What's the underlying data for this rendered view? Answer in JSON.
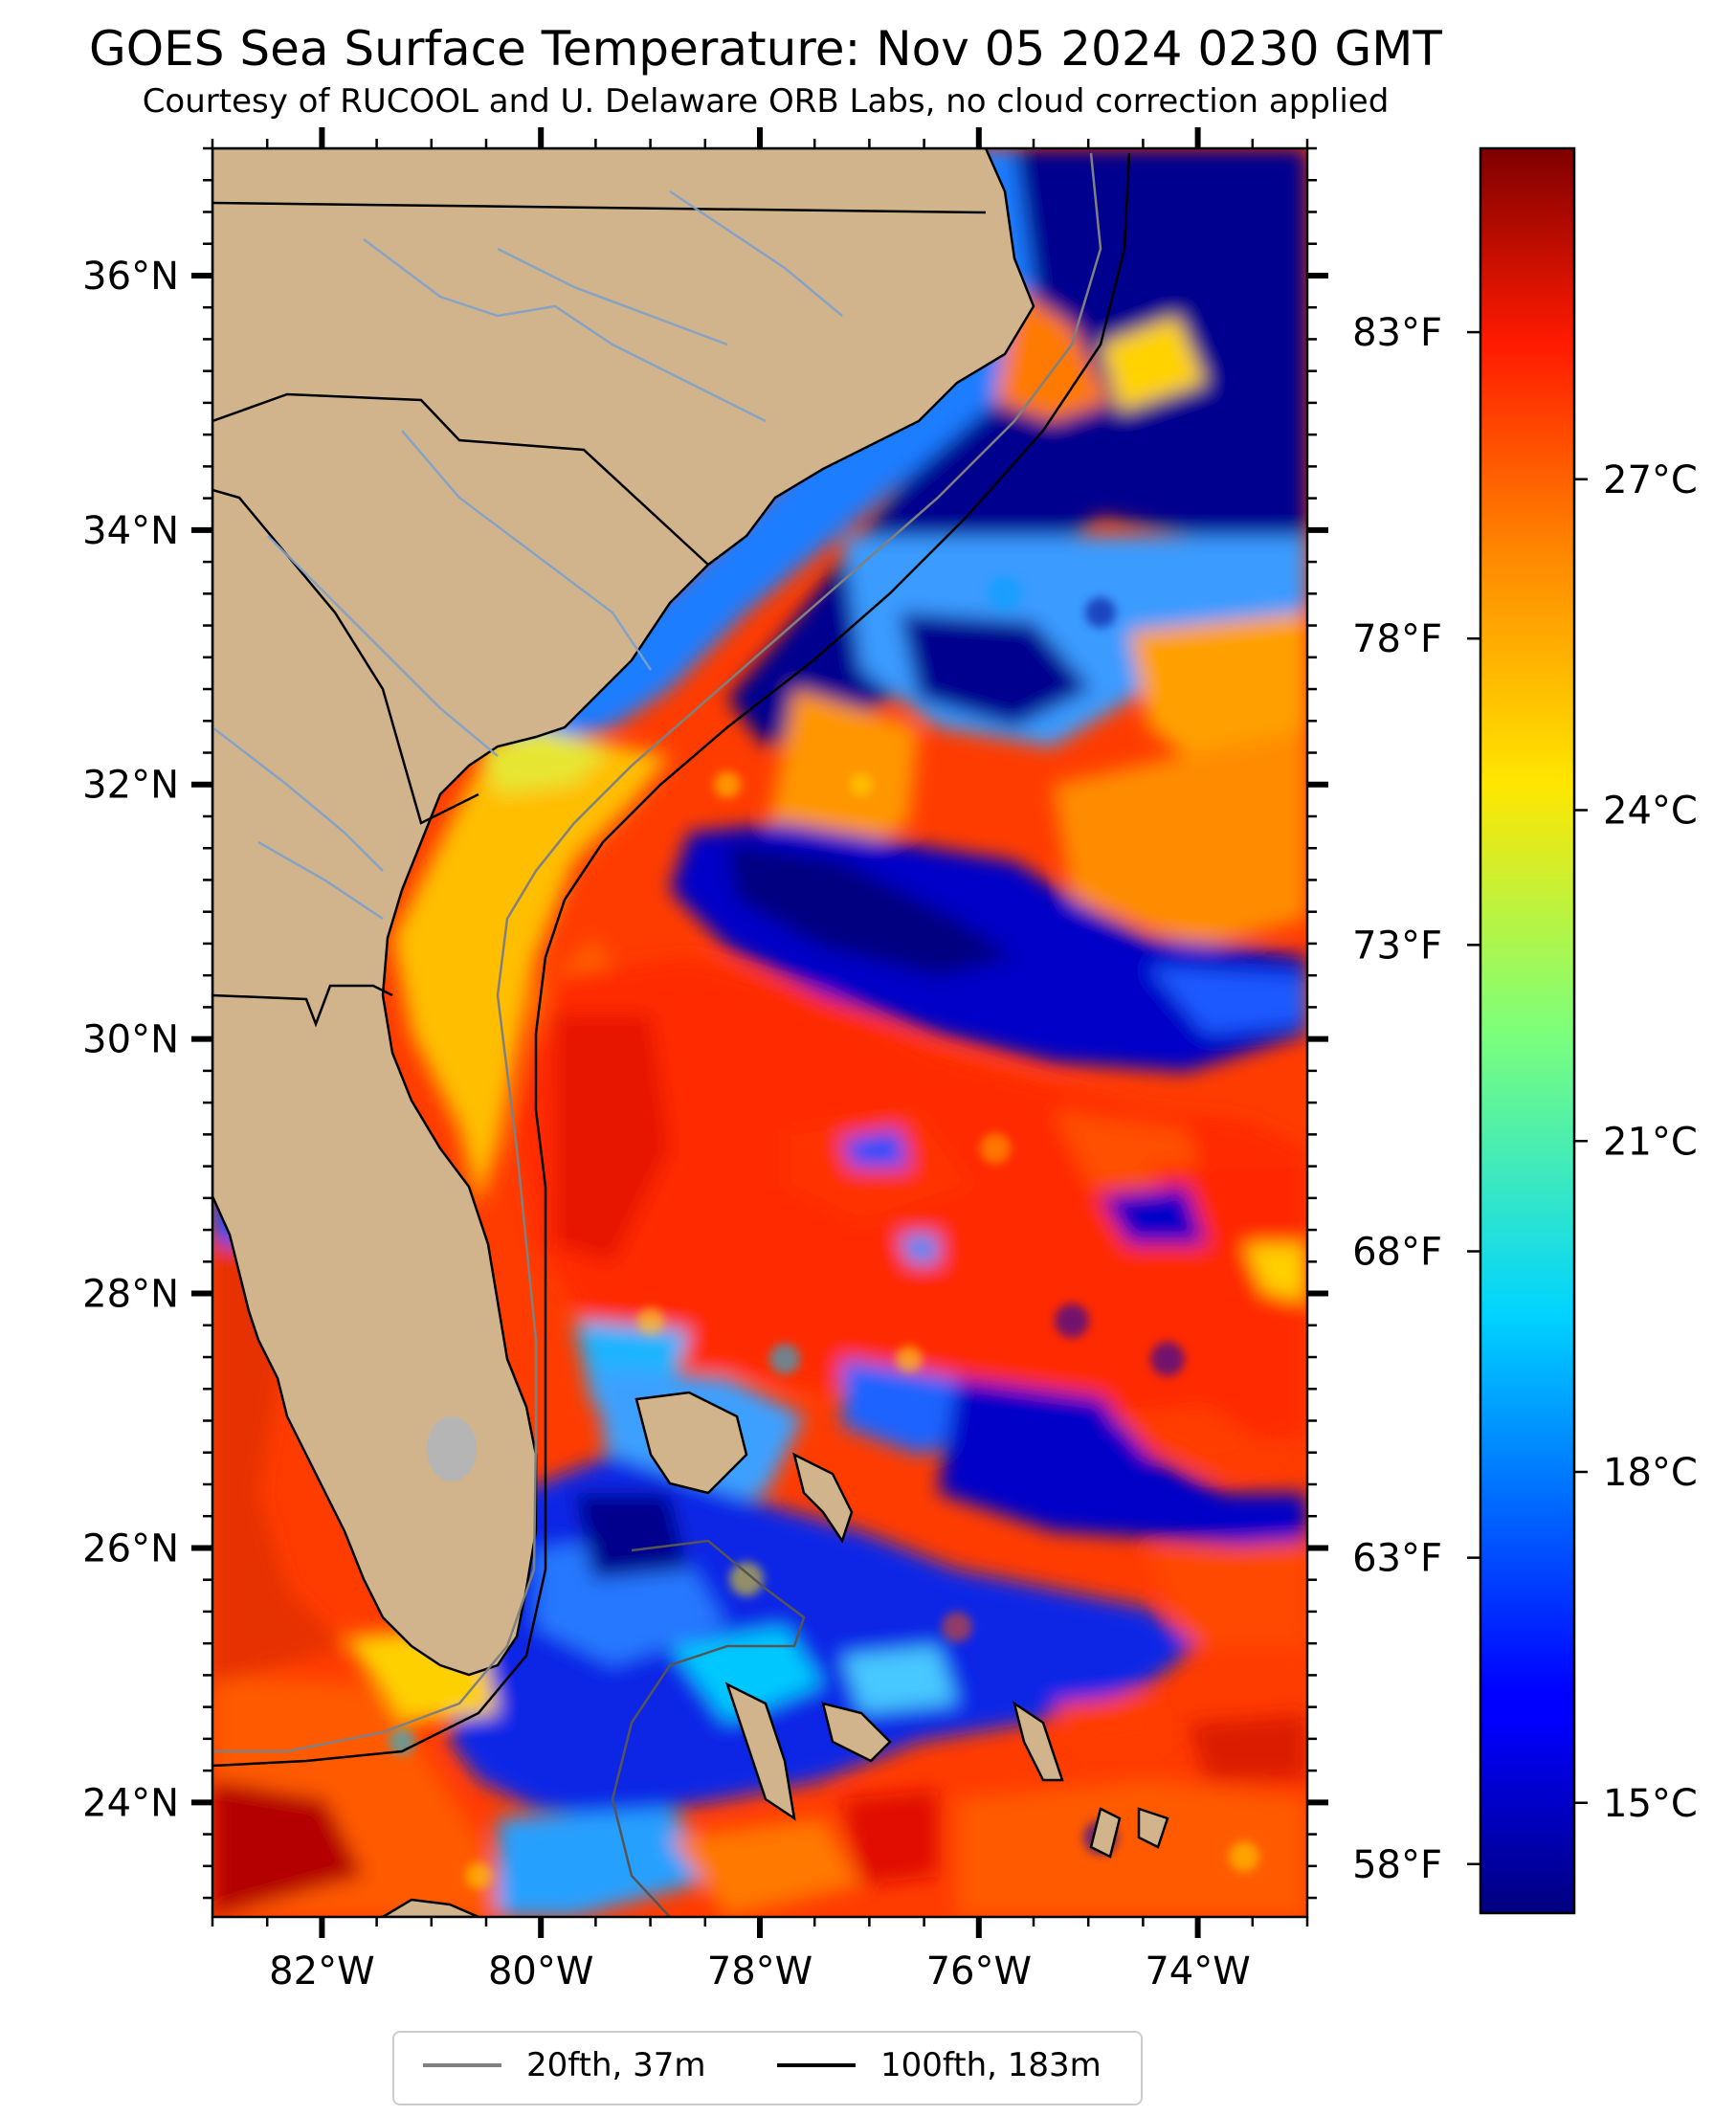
{
  "title": "GOES Sea Surface Temperature: Nov 05 2024 0230 GMT",
  "subtitle": "Courtesy of RUCOOL and U. Delaware ORB Labs, no cloud correction applied",
  "map": {
    "lon_range": [
      -83.0,
      -73.0
    ],
    "lat_range": [
      23.1,
      37.0
    ],
    "lon_ticks": [
      "82°W",
      "80°W",
      "78°W",
      "76°W",
      "74°W"
    ],
    "lon_tick_values": [
      -82,
      -80,
      -78,
      -76,
      -74
    ],
    "lat_ticks": [
      "36°N",
      "34°N",
      "32°N",
      "30°N",
      "28°N",
      "26°N",
      "24°N"
    ],
    "lat_tick_values": [
      36,
      34,
      32,
      30,
      28,
      26,
      24
    ],
    "colors": {
      "land": "#d2b48c",
      "ocean_warm": "#ff3300",
      "ocean_cold": "#0000aa",
      "lake": "#b5b5b5"
    }
  },
  "colorbar": {
    "colormap": "jet",
    "celsius_labels": [
      "27°C",
      "24°C",
      "21°C",
      "18°C",
      "15°C"
    ],
    "celsius_values": [
      27,
      24,
      21,
      18,
      15
    ],
    "fahrenheit_labels": [
      "83°F",
      "78°F",
      "73°F",
      "68°F",
      "63°F",
      "58°F"
    ],
    "fahrenheit_values": [
      83,
      78,
      73,
      68,
      63,
      58
    ],
    "range_c": [
      14,
      30
    ]
  },
  "legend": {
    "items": [
      {
        "label": "20fth, 37m",
        "color": "#808080"
      },
      {
        "label": "100fth, 183m",
        "color": "#000000"
      }
    ]
  }
}
